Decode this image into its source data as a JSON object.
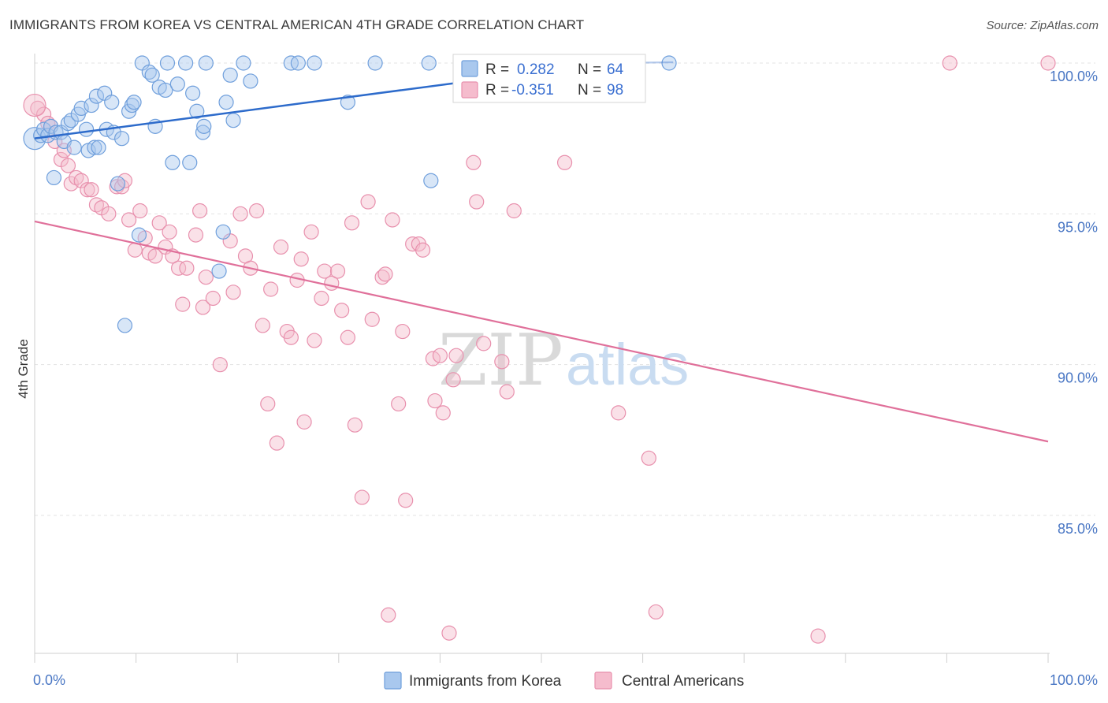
{
  "title": "IMMIGRANTS FROM KOREA VS CENTRAL AMERICAN 4TH GRADE CORRELATION CHART",
  "source": "Source: ZipAtlas.com",
  "watermark": {
    "zip": "ZIP",
    "atlas": "atlas"
  },
  "colors": {
    "korea_fill": "#a9c8ee",
    "korea_stroke": "#6f9fdc",
    "korea_line": "#2d6bcb",
    "central_fill": "#f5bccd",
    "central_stroke": "#e890ad",
    "central_line": "#e0709a",
    "grid": "#e3e3e3",
    "tick_text": "#4a77c4"
  },
  "stats_box": {
    "rows": [
      {
        "r_label": "R =",
        "r_value": "0.282",
        "n_label": "N =",
        "n_value": "64"
      },
      {
        "r_label": "R =",
        "r_value": "-0.351",
        "n_label": "N =",
        "n_value": "98"
      }
    ]
  },
  "legend": [
    {
      "label": "Immigrants from Korea"
    },
    {
      "label": "Central Americans"
    }
  ],
  "chart_data": {
    "type": "scatter",
    "title": "IMMIGRANTS FROM KOREA VS CENTRAL AMERICAN 4TH GRADE CORRELATION CHART",
    "xlabel": "",
    "ylabel": "4th Grade",
    "xlim": [
      0,
      100
    ],
    "ylim": [
      80.5,
      100.8
    ],
    "x_tick_labels": [
      "0.0%",
      "100.0%"
    ],
    "y_ticks": [
      85,
      90,
      95,
      100
    ],
    "y_tick_labels": [
      "85.0%",
      "90.0%",
      "95.0%",
      "100.0%"
    ],
    "grid": true,
    "legend_position": "bottom",
    "series": [
      {
        "name": "Immigrants from Korea",
        "trend": {
          "x": [
            0,
            56.5
          ],
          "y": [
            97.5,
            100.0
          ]
        },
        "points": [
          [
            0,
            97.5
          ],
          [
            0.6,
            97.6
          ],
          [
            0.9,
            97.8
          ],
          [
            1.3,
            97.6
          ],
          [
            1.6,
            97.9
          ],
          [
            1.9,
            96.2
          ],
          [
            2.1,
            97.7
          ],
          [
            2.6,
            97.7
          ],
          [
            2.9,
            97.4
          ],
          [
            3.3,
            98.0
          ],
          [
            3.6,
            98.1
          ],
          [
            3.9,
            97.2
          ],
          [
            4.3,
            98.3
          ],
          [
            4.6,
            98.5
          ],
          [
            5.1,
            97.8
          ],
          [
            5.3,
            97.1
          ],
          [
            5.6,
            98.6
          ],
          [
            5.9,
            97.2
          ],
          [
            6.1,
            98.9
          ],
          [
            6.3,
            97.2
          ],
          [
            6.9,
            99.0
          ],
          [
            7.1,
            97.8
          ],
          [
            7.6,
            98.7
          ],
          [
            7.8,
            97.7
          ],
          [
            8.2,
            96.0
          ],
          [
            8.6,
            97.5
          ],
          [
            8.9,
            91.3
          ],
          [
            9.3,
            98.4
          ],
          [
            9.6,
            98.6
          ],
          [
            9.8,
            98.7
          ],
          [
            10.3,
            94.3
          ],
          [
            10.6,
            100.0
          ],
          [
            11.3,
            99.7
          ],
          [
            11.6,
            99.6
          ],
          [
            11.9,
            97.9
          ],
          [
            12.3,
            99.2
          ],
          [
            12.9,
            99.1
          ],
          [
            13.1,
            100.0
          ],
          [
            13.6,
            96.7
          ],
          [
            14.1,
            99.3
          ],
          [
            14.9,
            100.0
          ],
          [
            15.3,
            96.7
          ],
          [
            15.6,
            99.0
          ],
          [
            16.0,
            98.4
          ],
          [
            16.6,
            97.7
          ],
          [
            16.7,
            97.9
          ],
          [
            16.9,
            100.0
          ],
          [
            18.2,
            93.1
          ],
          [
            18.6,
            94.4
          ],
          [
            18.9,
            98.7
          ],
          [
            19.3,
            99.6
          ],
          [
            19.6,
            98.1
          ],
          [
            20.6,
            100.0
          ],
          [
            21.3,
            99.4
          ],
          [
            25.3,
            100.0
          ],
          [
            26.0,
            100.0
          ],
          [
            27.6,
            100.0
          ],
          [
            30.9,
            98.7
          ],
          [
            33.6,
            100.0
          ],
          [
            38.9,
            100.0
          ],
          [
            39.1,
            96.1
          ],
          [
            49.9,
            100.0
          ],
          [
            56.5,
            100.0
          ],
          [
            62.6,
            100.0
          ]
        ]
      },
      {
        "name": "Central Americans",
        "trend": {
          "x": [
            0,
            100
          ],
          "y": [
            94.75,
            87.45
          ]
        },
        "points": [
          [
            0.3,
            98.5
          ],
          [
            0.9,
            98.3
          ],
          [
            1.3,
            98.0
          ],
          [
            1.6,
            97.9
          ],
          [
            2.0,
            97.4
          ],
          [
            2.6,
            96.8
          ],
          [
            2.9,
            97.1
          ],
          [
            3.3,
            96.6
          ],
          [
            3.6,
            96.0
          ],
          [
            4.1,
            96.2
          ],
          [
            4.6,
            96.1
          ],
          [
            5.2,
            95.8
          ],
          [
            5.6,
            95.8
          ],
          [
            6.1,
            95.3
          ],
          [
            6.6,
            95.2
          ],
          [
            7.3,
            95.0
          ],
          [
            8.1,
            95.9
          ],
          [
            8.6,
            95.9
          ],
          [
            8.9,
            96.1
          ],
          [
            9.3,
            94.8
          ],
          [
            9.9,
            93.8
          ],
          [
            10.4,
            95.1
          ],
          [
            10.9,
            94.2
          ],
          [
            11.3,
            93.7
          ],
          [
            11.9,
            93.6
          ],
          [
            12.3,
            94.7
          ],
          [
            12.9,
            93.9
          ],
          [
            13.3,
            94.4
          ],
          [
            13.6,
            93.6
          ],
          [
            14.2,
            93.2
          ],
          [
            14.6,
            92.0
          ],
          [
            15.0,
            93.2
          ],
          [
            15.9,
            94.3
          ],
          [
            16.3,
            95.1
          ],
          [
            16.6,
            91.9
          ],
          [
            16.9,
            92.9
          ],
          [
            17.6,
            92.2
          ],
          [
            18.3,
            90.0
          ],
          [
            19.3,
            94.1
          ],
          [
            19.6,
            92.4
          ],
          [
            20.3,
            95.0
          ],
          [
            20.8,
            93.6
          ],
          [
            21.3,
            93.2
          ],
          [
            21.9,
            95.1
          ],
          [
            22.5,
            91.3
          ],
          [
            23.0,
            88.7
          ],
          [
            23.3,
            92.5
          ],
          [
            23.9,
            87.4
          ],
          [
            24.3,
            93.9
          ],
          [
            24.9,
            91.1
          ],
          [
            25.3,
            90.9
          ],
          [
            25.9,
            92.8
          ],
          [
            26.3,
            93.5
          ],
          [
            26.6,
            88.1
          ],
          [
            27.3,
            94.4
          ],
          [
            27.6,
            90.8
          ],
          [
            28.3,
            92.2
          ],
          [
            28.6,
            93.1
          ],
          [
            29.3,
            92.7
          ],
          [
            29.9,
            93.1
          ],
          [
            30.3,
            91.8
          ],
          [
            30.9,
            90.9
          ],
          [
            31.3,
            94.7
          ],
          [
            31.6,
            88.0
          ],
          [
            32.3,
            85.6
          ],
          [
            32.9,
            95.4
          ],
          [
            33.3,
            91.5
          ],
          [
            34.3,
            92.9
          ],
          [
            34.6,
            93.0
          ],
          [
            34.9,
            81.7
          ],
          [
            35.3,
            94.8
          ],
          [
            35.9,
            88.7
          ],
          [
            36.3,
            91.1
          ],
          [
            36.6,
            85.5
          ],
          [
            37.3,
            94.0
          ],
          [
            37.9,
            94.0
          ],
          [
            38.3,
            93.8
          ],
          [
            39.3,
            90.2
          ],
          [
            39.5,
            88.8
          ],
          [
            40.0,
            90.3
          ],
          [
            40.3,
            88.4
          ],
          [
            40.9,
            81.1
          ],
          [
            41.3,
            89.5
          ],
          [
            41.6,
            90.3
          ],
          [
            43.3,
            96.7
          ],
          [
            43.6,
            95.4
          ],
          [
            44.3,
            90.7
          ],
          [
            46.1,
            90.1
          ],
          [
            46.6,
            89.1
          ],
          [
            47.3,
            95.1
          ],
          [
            52.3,
            96.7
          ],
          [
            57.6,
            88.4
          ],
          [
            60.6,
            86.9
          ],
          [
            61.3,
            81.8
          ],
          [
            77.3,
            81.0
          ],
          [
            90.3,
            100.0
          ],
          [
            100.0,
            100.0
          ],
          [
            0,
            98.6
          ]
        ]
      }
    ]
  }
}
